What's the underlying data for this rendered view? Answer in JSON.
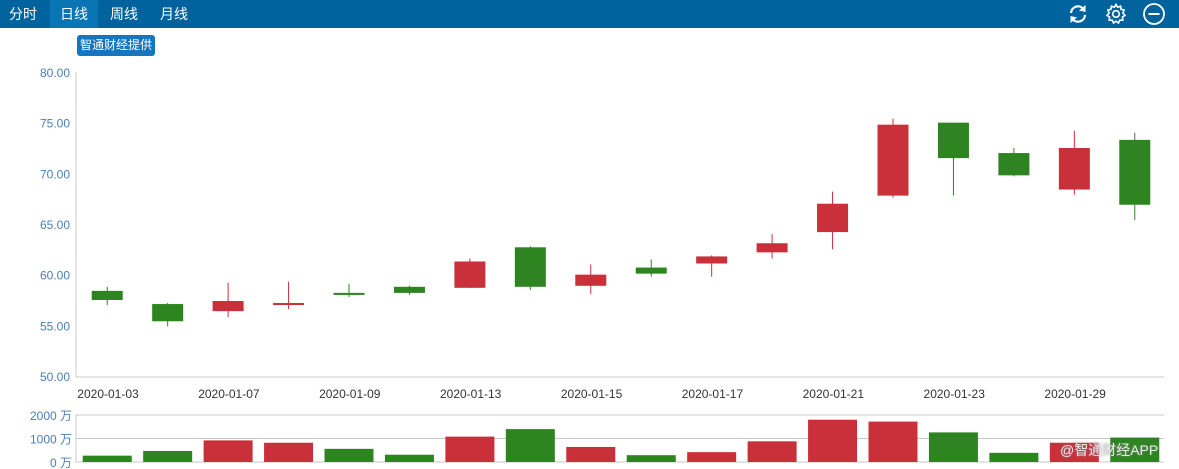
{
  "toolbar": {
    "tabs": [
      {
        "label": "分时",
        "active": false
      },
      {
        "label": "日线",
        "active": true
      },
      {
        "label": "周线",
        "active": false
      },
      {
        "label": "月线",
        "active": false
      }
    ],
    "icons": [
      "refresh-icon",
      "gear-icon",
      "minus-circle-icon"
    ]
  },
  "badge": "智通财经提供",
  "watermark": "@智通财经APP",
  "colors": {
    "topbar": "#00639e",
    "active_tab": "#0a75b4",
    "up": "#c9303a",
    "down": "#2e8421",
    "axis_label": "#4a7fb6"
  },
  "chart_data": [
    {
      "type": "candlestick",
      "ylim": [
        50,
        80
      ],
      "yticks": [
        "80.00",
        "75.00",
        "70.00",
        "65.00",
        "60.00",
        "55.00",
        "50.00"
      ],
      "xtick_labels": [
        "2020-01-03",
        "2020-01-07",
        "2020-01-09",
        "2020-01-13",
        "2020-01-15",
        "2020-01-17",
        "2020-01-21",
        "2020-01-23",
        "2020-01-29"
      ],
      "candles": [
        {
          "open": 58.5,
          "close": 57.6,
          "high": 58.9,
          "low": 57.1
        },
        {
          "open": 57.2,
          "close": 55.5,
          "high": 57.3,
          "low": 55.0
        },
        {
          "open": 56.5,
          "close": 57.5,
          "high": 59.3,
          "low": 55.9
        },
        {
          "open": 57.2,
          "close": 57.3,
          "high": 59.4,
          "low": 56.7
        },
        {
          "open": 58.3,
          "close": 58.1,
          "high": 59.2,
          "low": 57.9
        },
        {
          "open": 58.9,
          "close": 58.3,
          "high": 59.0,
          "low": 58.1
        },
        {
          "open": 58.8,
          "close": 61.4,
          "high": 61.7,
          "low": 58.8
        },
        {
          "open": 62.8,
          "close": 58.9,
          "high": 62.9,
          "low": 58.6
        },
        {
          "open": 59.0,
          "close": 60.1,
          "high": 61.1,
          "low": 58.2
        },
        {
          "open": 60.8,
          "close": 60.2,
          "high": 61.6,
          "low": 59.9
        },
        {
          "open": 61.2,
          "close": 61.9,
          "high": 62.0,
          "low": 59.9
        },
        {
          "open": 62.3,
          "close": 63.2,
          "high": 64.1,
          "low": 61.7
        },
        {
          "open": 64.3,
          "close": 67.1,
          "high": 68.3,
          "low": 62.6
        },
        {
          "open": 67.9,
          "close": 74.9,
          "high": 75.5,
          "low": 67.7
        },
        {
          "open": 75.1,
          "close": 71.6,
          "high": 75.1,
          "low": 67.9
        },
        {
          "open": 72.1,
          "close": 69.9,
          "high": 72.6,
          "low": 69.8
        },
        {
          "open": 68.5,
          "close": 72.6,
          "high": 74.3,
          "low": 68.0
        },
        {
          "open": 73.4,
          "close": 67.0,
          "high": 74.1,
          "low": 65.5
        }
      ]
    },
    {
      "type": "bar",
      "ylim": [
        0,
        2000
      ],
      "yticks": [
        "2000 万",
        "1000 万",
        "0 万"
      ],
      "values": [
        270,
        470,
        920,
        820,
        560,
        310,
        1080,
        1400,
        640,
        290,
        420,
        880,
        1800,
        1720,
        1260,
        390,
        820,
        1040
      ],
      "bar_colors": [
        "down",
        "down",
        "up",
        "up",
        "down",
        "down",
        "up",
        "down",
        "up",
        "down",
        "up",
        "up",
        "up",
        "up",
        "down",
        "down",
        "up",
        "down"
      ]
    }
  ]
}
